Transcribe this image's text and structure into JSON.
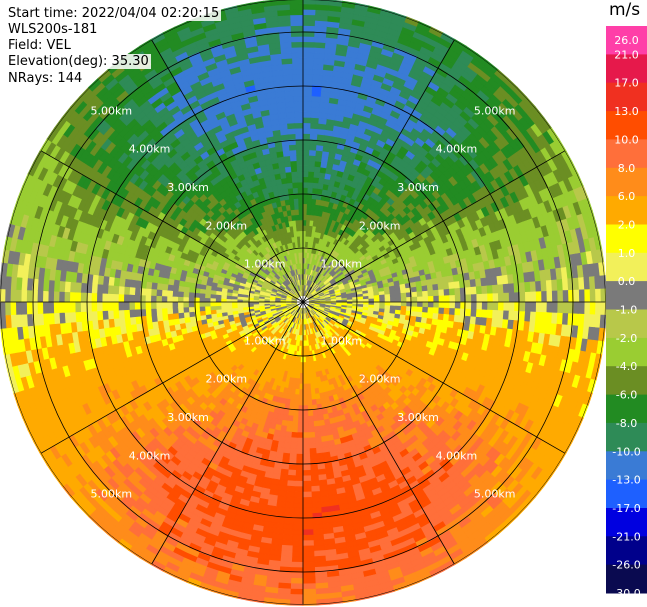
{
  "header": {
    "start_time": "Start time: 2022/04/04 02:20:15",
    "site": "WLS200s-181",
    "field": "Field: VEL",
    "elevation": "Elevation(deg): 35.30",
    "nrays": "NRays: 144"
  },
  "colorbar": {
    "unit": "m/s",
    "labels": [
      "26.0",
      "21.0",
      "17.0",
      "13.0",
      "10.0",
      "8.0",
      "6.0",
      "2.0",
      "1.0",
      "0.0",
      "-1.0",
      "-2.0",
      "-4.0",
      "-6.0",
      "-8.0",
      "-10.0",
      "-13.0",
      "-17.0",
      "-21.0",
      "-26.0",
      "-30.0"
    ],
    "colors": [
      "#ff3fa8",
      "#e6194b",
      "#f03020",
      "#ff4d00",
      "#ff6f3a",
      "#ff8c1a",
      "#ffaa00",
      "#ffff00",
      "#f2f05a",
      "#7a7a7a",
      "#b8c84a",
      "#9acd32",
      "#6b8e23",
      "#228b22",
      "#2e8b57",
      "#3a7bd5",
      "#1e60ff",
      "#0000e0",
      "#00008b",
      "#0a0a50"
    ]
  },
  "chart_data": {
    "type": "heatmap",
    "title": "",
    "projection": "polar",
    "field": "VEL",
    "units": "m/s",
    "elevation_deg": 35.3,
    "nrays": 144,
    "range_rings_km": [
      1.0,
      2.0,
      3.0,
      4.0,
      5.0
    ],
    "range_labels": [
      "1.00km",
      "2.00km",
      "3.00km",
      "4.00km",
      "5.00km"
    ],
    "max_range_km": 5.6,
    "azimuth_spokes_deg": [
      0,
      30,
      60,
      90,
      120,
      150,
      180,
      210,
      240,
      270,
      300,
      330
    ],
    "color_levels": [
      26.0,
      21.0,
      17.0,
      13.0,
      10.0,
      8.0,
      6.0,
      2.0,
      1.0,
      0.0,
      -1.0,
      -2.0,
      -4.0,
      -6.0,
      -8.0,
      -10.0,
      -13.0,
      -17.0,
      -21.0,
      -26.0,
      -30.0
    ],
    "velocity_field": {
      "pattern": "radial velocity: negative (approaching) to the north, positive (receding) to the south",
      "north_peak_mps": -13,
      "south_peak_mps": 13,
      "speed_profile": [
        {
          "range_km": 0.4,
          "peak_mps": 1
        },
        {
          "range_km": 1.0,
          "peak_mps": 3
        },
        {
          "range_km": 2.0,
          "peak_mps": 8
        },
        {
          "range_km": 3.0,
          "peak_mps": 10
        },
        {
          "range_km": 4.0,
          "peak_mps": 12
        },
        {
          "range_km": 5.0,
          "peak_mps": 10
        },
        {
          "range_km": 5.6,
          "peak_mps": 8
        }
      ]
    }
  }
}
